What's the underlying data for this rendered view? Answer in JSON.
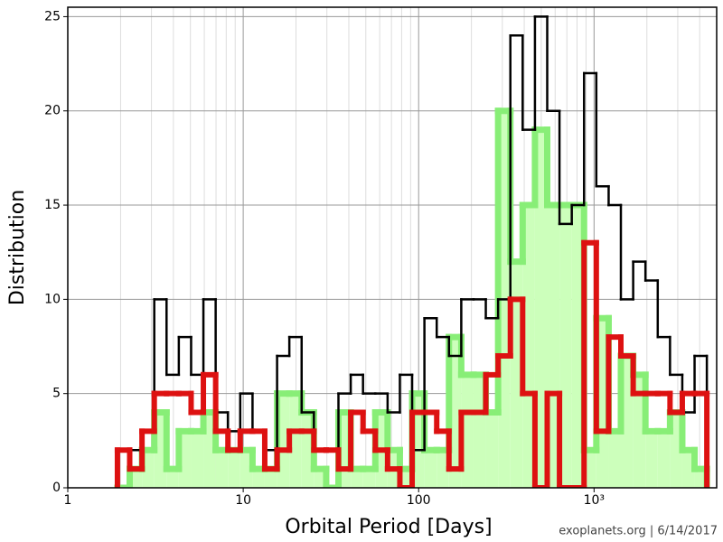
{
  "chart_data": {
    "type": "histogram",
    "xlabel": "Orbital Period [Days]",
    "ylabel": "Distribution",
    "footer": "exoplanets.org | 6/14/2017",
    "xscale": "log",
    "grid": true,
    "xlim": [
      1,
      5000
    ],
    "ylim": [
      0,
      25.5
    ],
    "xticks": [
      1,
      10,
      100,
      {
        "value": 1000,
        "label": "10³"
      }
    ],
    "xminorticks": [
      2,
      3,
      4,
      5,
      6,
      7,
      8,
      9,
      20,
      30,
      40,
      50,
      60,
      70,
      80,
      90,
      200,
      300,
      400,
      500,
      600,
      700,
      800,
      900,
      2000,
      3000,
      4000,
      5000
    ],
    "yticks": [
      0,
      5,
      10,
      15,
      20,
      25
    ],
    "bins": [
      1.919,
      2.254,
      2.649,
      3.112,
      3.656,
      4.295,
      5.047,
      5.929,
      6.966,
      8.185,
      9.616,
      11.3,
      13.27,
      15.6,
      18.32,
      21.53,
      25.29,
      29.72,
      34.91,
      41.02,
      48.19,
      56.62,
      66.53,
      78.16,
      91.83,
      107.9,
      126.8,
      148.9,
      175.0,
      205.6,
      241.5,
      283.8,
      333.4,
      391.7,
      460.3,
      540.8,
      635.3,
      746.4,
      877.0,
      1030,
      1211,
      1422,
      1671,
      1963,
      2307,
      2710,
      3184,
      3741,
      4395
    ],
    "series": [
      {
        "color": "#88ee77",
        "fill": "#ccffbb",
        "linewidth": 7,
        "values": [
          0,
          1,
          2,
          4,
          1,
          3,
          3,
          4,
          2,
          2,
          2,
          1,
          1,
          5,
          5,
          4,
          1,
          0,
          4,
          1,
          1,
          4,
          2,
          1,
          5,
          2,
          2,
          8,
          6,
          6,
          4,
          20,
          12,
          15,
          19,
          15,
          15,
          15,
          2,
          9,
          3,
          7,
          6,
          3,
          3,
          4,
          2,
          1
        ]
      },
      {
        "color": "#000000",
        "linewidth": 2.5,
        "values": [
          2,
          2,
          3,
          10,
          6,
          8,
          6,
          10,
          4,
          3,
          5,
          3,
          2,
          7,
          8,
          4,
          2,
          2,
          5,
          6,
          5,
          5,
          4,
          6,
          2,
          9,
          8,
          7,
          10,
          10,
          9,
          10,
          24,
          19,
          25,
          20,
          14,
          15,
          22,
          16,
          15,
          10,
          12,
          11,
          8,
          6,
          4,
          7
        ]
      },
      {
        "color": "#dd1111",
        "linewidth": 6,
        "values": [
          2,
          1,
          3,
          5,
          5,
          5,
          4,
          6,
          3,
          2,
          3,
          3,
          1,
          2,
          3,
          3,
          2,
          2,
          1,
          4,
          3,
          2,
          1,
          0,
          4,
          4,
          3,
          1,
          4,
          4,
          6,
          7,
          10,
          5,
          0,
          5,
          0,
          0,
          13,
          3,
          8,
          7,
          5,
          5,
          5,
          4,
          5,
          5
        ]
      }
    ]
  }
}
